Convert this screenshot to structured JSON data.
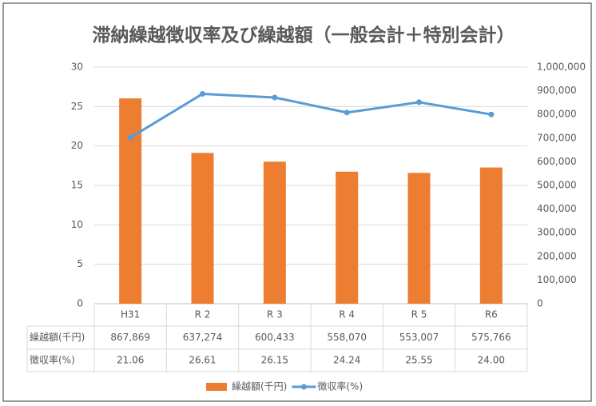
{
  "chart_data": {
    "type": "bar-line",
    "title": "滞納繰越徴収率及び繰越額（一般会計＋特別会計）",
    "categories": [
      "H31",
      "R 2",
      "R 3",
      "R 4",
      "R 5",
      "R6"
    ],
    "series": [
      {
        "name": "繰越額(千円)",
        "type": "bar",
        "axis": "y2",
        "color": "#ed7d31",
        "values": [
          867869,
          637274,
          600433,
          558070,
          553007,
          575766
        ],
        "value_labels": [
          "867,869",
          "637,274",
          "600,433",
          "558,070",
          "553,007",
          "575,766"
        ]
      },
      {
        "name": "徴収率(%)",
        "type": "line",
        "axis": "y",
        "color": "#5b9bd5",
        "values": [
          21.06,
          26.61,
          26.15,
          24.24,
          25.55,
          24.0
        ],
        "value_labels": [
          "21.06",
          "26.61",
          "26.15",
          "24.24",
          "25.55",
          "24.00"
        ]
      }
    ],
    "ylim": [
      0,
      30
    ],
    "yticks": [
      0,
      5,
      10,
      15,
      20,
      25,
      30
    ],
    "y2lim": [
      0,
      1000000
    ],
    "y2ticks": [
      0,
      {
        "value": 100000,
        "label": "100,000"
      },
      {
        "value": 200000,
        "label": "200,000"
      },
      {
        "value": 300000,
        "label": "300,000"
      },
      {
        "value": 400000,
        "label": "400,000"
      },
      {
        "value": 500000,
        "label": "500,000"
      },
      {
        "value": 600000,
        "label": "600,000"
      },
      {
        "value": 700000,
        "label": "700,000"
      },
      {
        "value": 800000,
        "label": "800,000"
      },
      {
        "value": 900000,
        "label": "900,000"
      },
      {
        "value": 1000000,
        "label": "1,000,000"
      }
    ],
    "grid": true,
    "legend": "bottom"
  }
}
